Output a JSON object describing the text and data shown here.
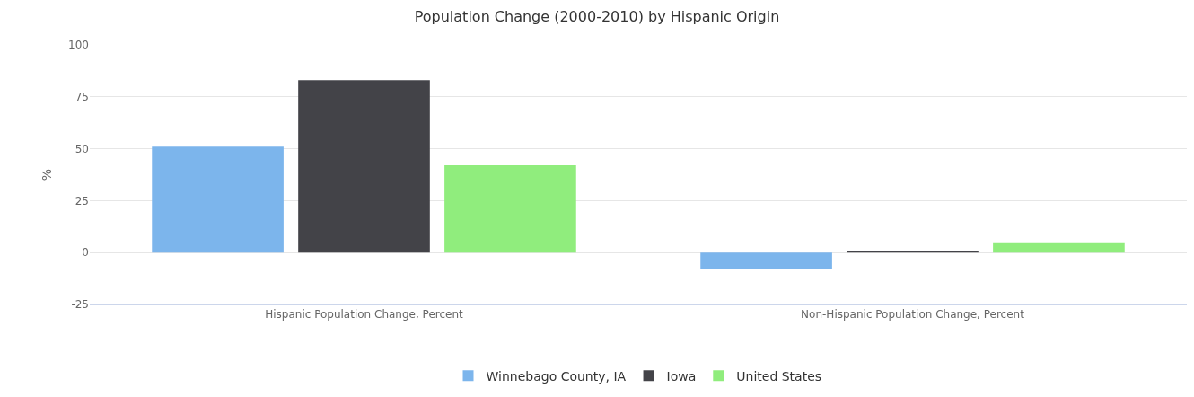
{
  "chart_data": {
    "type": "bar",
    "title": "Population Change (2000-2010) by Hispanic Origin",
    "ylabel": "%",
    "categories": [
      "Hispanic Population Change, Percent",
      "Non-Hispanic Population Change, Percent"
    ],
    "series": [
      {
        "name": "Winnebago County, IA",
        "color": "#7cb5ec",
        "values": [
          51,
          -8
        ]
      },
      {
        "name": "Iowa",
        "color": "#434348",
        "values": [
          83,
          1
        ]
      },
      {
        "name": "United States",
        "color": "#90ed7d",
        "values": [
          42,
          5
        ]
      }
    ],
    "ylim": [
      -25,
      100
    ],
    "yticks": [
      -25,
      0,
      25,
      50,
      75,
      100
    ],
    "grid": "y",
    "legend": "bottom"
  }
}
